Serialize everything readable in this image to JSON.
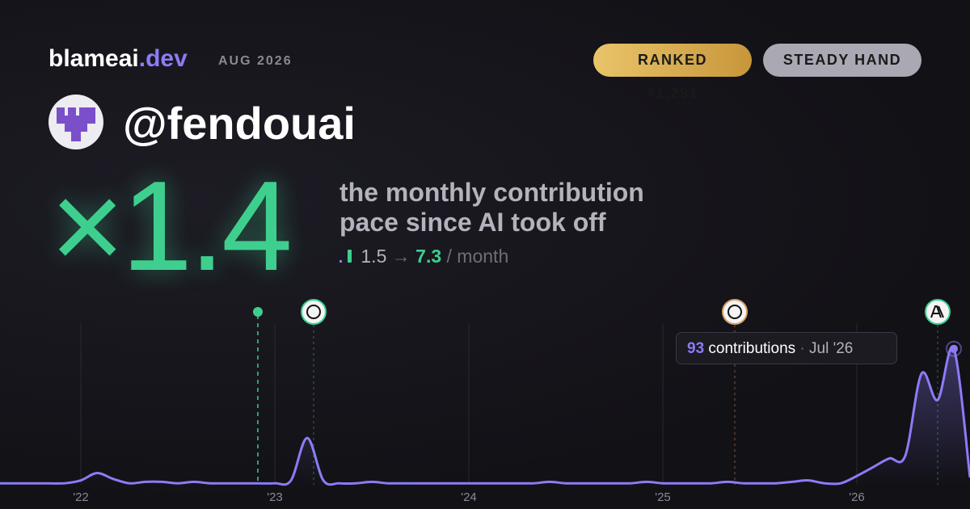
{
  "brand": {
    "name": "blameai",
    "tld": ".dev",
    "date": "AUG 2026"
  },
  "badges": [
    "RANKED #1,291",
    "STEADY HAND"
  ],
  "handle": "@fendouai",
  "multiplier": "×1.4",
  "description": [
    "the monthly contribution",
    "pace since AI took off"
  ],
  "stats": {
    "before": "1.5",
    "arrow": "→",
    "after": "7.3",
    "unit": "/ month"
  },
  "tooltip": {
    "label": "contributions",
    "separator": "·",
    "date": "Jul '26"
  },
  "chart_data": {
    "type": "area",
    "categories": [
      null,
      null,
      null,
      null,
      null,
      "'22",
      null,
      null,
      null,
      null,
      null,
      null,
      null,
      null,
      null,
      null,
      null,
      "'23",
      null,
      null,
      null,
      null,
      null,
      null,
      null,
      null,
      null,
      null,
      null,
      "'24",
      null,
      null,
      null,
      null,
      null,
      null,
      null,
      null,
      null,
      null,
      null,
      "'25",
      null,
      null,
      null,
      null,
      null,
      null,
      null,
      null,
      null,
      null,
      null,
      "'26",
      null,
      null,
      null,
      null,
      null,
      null,
      null
    ],
    "values": [
      1,
      1,
      1,
      1,
      1,
      3,
      8,
      4,
      1,
      2,
      2,
      1,
      2,
      1,
      1,
      1,
      1,
      1,
      3,
      32,
      3,
      1,
      1,
      2,
      1,
      1,
      1,
      1,
      1,
      1,
      1,
      1,
      1,
      1,
      2,
      1,
      1,
      1,
      1,
      1,
      2,
      1,
      1,
      1,
      1,
      2,
      1,
      1,
      1,
      2,
      3,
      1,
      1,
      6,
      12,
      18,
      20,
      76,
      58,
      93,
      5
    ],
    "color": "#8b7cf6",
    "ylim": [
      0,
      105
    ]
  }
}
